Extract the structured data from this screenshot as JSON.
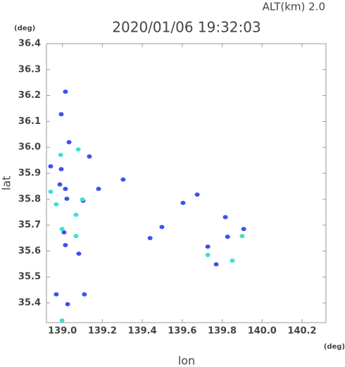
{
  "chart_data": {
    "type": "scatter",
    "title": "2020/01/06 19:32:03",
    "subtitle": "ALT(km) 2.0",
    "y_unit": "(deg)",
    "x_unit": "(deg)",
    "ylabel": "lat",
    "xlabel": "lon",
    "xlim": [
      138.92,
      140.32
    ],
    "ylim": [
      35.324,
      36.4
    ],
    "xticks": [
      {
        "value": 139,
        "label": "139.0"
      },
      139.2,
      139.4,
      139.6,
      139.8,
      {
        "value": 140,
        "label": "140.0"
      },
      140.2
    ],
    "yticks": [
      {
        "value": 35.4,
        "label": "35.4"
      },
      35.5,
      35.6,
      35.7,
      35.8,
      35.9,
      {
        "value": 36,
        "label": "36.0"
      },
      36.1,
      36.2,
      36.3,
      36.4
    ],
    "grid": false,
    "series": [
      {
        "color": "#3f4ff0",
        "x": [
          139.015,
          138.994,
          139.033,
          138.941,
          138.994,
          139.015,
          139.022,
          139.103,
          139.008,
          139.015,
          139.082,
          138.969,
          139.11,
          139.026,
          139.135,
          139.181,
          139.304,
          139.439,
          139.498,
          139.604,
          139.675,
          139.827,
          139.77,
          139.908,
          139.816,
          139.728,
          138.987
        ],
        "values": [
          36.215,
          36.128,
          36.02,
          35.927,
          35.916,
          35.84,
          35.802,
          35.794,
          35.672,
          35.623,
          35.59,
          35.433,
          35.433,
          35.395,
          35.965,
          35.84,
          35.876,
          35.65,
          35.693,
          35.786,
          35.818,
          35.655,
          35.549,
          35.685,
          35.731,
          35.617,
          35.857
        ]
      },
      {
        "color": "#3fe0d0",
        "x": [
          138.998,
          139.079,
          138.969,
          139.068,
          139.1,
          138.991,
          139.728,
          139.851,
          139.9,
          138.998,
          138.941,
          139.068
        ],
        "values": [
          35.685,
          35.992,
          35.78,
          35.74,
          35.799,
          35.971,
          35.585,
          35.563,
          35.658,
          35.332,
          35.829,
          35.658
        ]
      }
    ]
  }
}
